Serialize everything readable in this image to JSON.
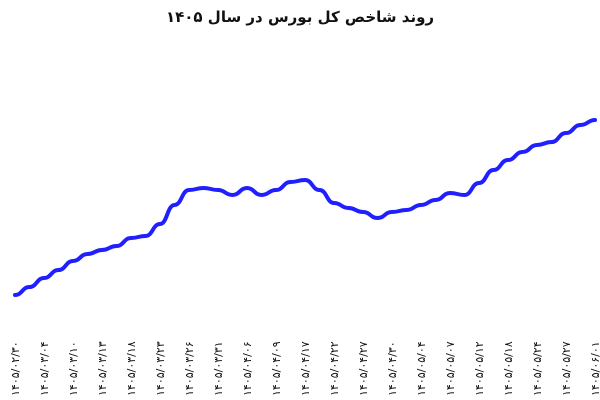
{
  "chart_data": {
    "type": "line",
    "title": "روند شاخص کل بورس در سال ۱۴۰۵",
    "categories": [
      "۱۴۰۵/۰۲/۳۰",
      null,
      "۱۴۰۵/۰۳/۰۴",
      null,
      "۱۴۰۵/۰۳/۱۰",
      null,
      "۱۴۰۵/۰۳/۱۳",
      null,
      "۱۴۰۵/۰۳/۱۸",
      null,
      "۱۴۰۵/۰۳/۲۳",
      null,
      "۱۴۰۵/۰۳/۲۶",
      null,
      "۱۴۰۵/۰۳/۳۱",
      null,
      "۱۴۰۵/۰۴/۰۶",
      null,
      "۱۴۰۵/۰۴/۰۹",
      null,
      "۱۴۰۵/۰۴/۱۷",
      null,
      "۱۴۰۵/۰۴/۲۲",
      null,
      "۱۴۰۵/۰۴/۲۷",
      null,
      "۱۴۰۵/۰۴/۳۰",
      null,
      "۱۴۰۵/۰۵/۰۴",
      null,
      "۱۴۰۵/۰۵/۰۷",
      null,
      "۱۴۰۵/۰۵/۱۲",
      null,
      "۱۴۰۵/۰۵/۱۸",
      null,
      "۱۴۰۵/۰۵/۲۴",
      null,
      "۱۴۰۵/۰۵/۲۷",
      null,
      "۱۴۰۵/۰۶/۰۱"
    ],
    "values": [
      5,
      13,
      22,
      30,
      39,
      46,
      50,
      54,
      62,
      64,
      76,
      95,
      110,
      112,
      110,
      105,
      112,
      105,
      110,
      118,
      120,
      110,
      97,
      92,
      88,
      82,
      88,
      90,
      95,
      100,
      107,
      105,
      117,
      130,
      140,
      148,
      155,
      158,
      167,
      175,
      180
    ],
    "color": "#1f1fff"
  }
}
